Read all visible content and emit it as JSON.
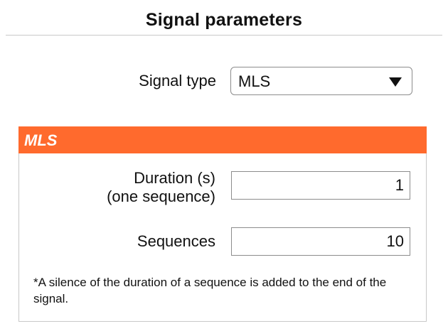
{
  "header": {
    "title": "Signal parameters"
  },
  "signal_type": {
    "label": "Signal type",
    "selected": "MLS"
  },
  "panel": {
    "title": "MLS",
    "accent_color": "#ff6a2d",
    "fields": {
      "duration": {
        "label_line1": "Duration (s)",
        "label_line2": "(one sequence)",
        "value": "1"
      },
      "sequences": {
        "label": "Sequences",
        "value": "10"
      }
    },
    "footnote": "*A silence of the duration of a sequence is added to the end of the signal."
  },
  "icons": {
    "select_arrow": "triangle-down-icon"
  }
}
